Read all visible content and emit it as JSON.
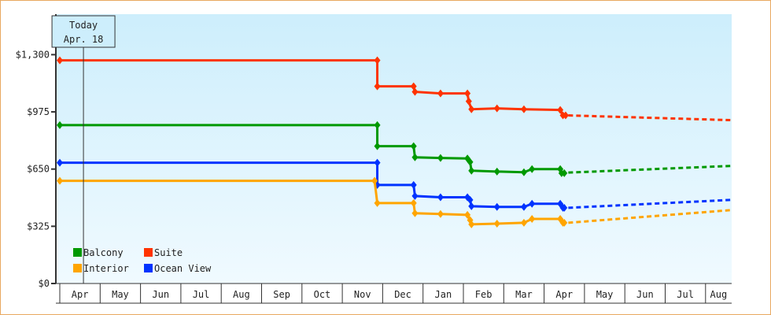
{
  "chart_data": {
    "type": "line",
    "step": true,
    "ylim": [
      0,
      1530
    ],
    "yticks": [
      {
        "v": 0,
        "label": "$0"
      },
      {
        "v": 325,
        "label": "$325"
      },
      {
        "v": 650,
        "label": "$650"
      },
      {
        "v": 975,
        "label": "$975"
      },
      {
        "v": 1300,
        "label": "$1,300"
      }
    ],
    "xticks": [
      "Apr",
      "May",
      "Jun",
      "Jul",
      "Aug",
      "Sep",
      "Oct",
      "Nov",
      "Dec",
      "Jan",
      "Feb",
      "Mar",
      "Apr",
      "May",
      "Jun",
      "Jul",
      "Aug"
    ],
    "today": {
      "title": "Today",
      "date": "Apr. 18",
      "x": "Apr 18"
    },
    "legend": {
      "placement": "bottom-left"
    },
    "series": [
      {
        "name": "Suite",
        "color": "#ff3300",
        "points": [
          [
            "Apr 1",
            1268
          ],
          [
            "Nov 27",
            1268
          ],
          [
            "Nov 27",
            1120
          ],
          [
            "Dec 24",
            1120
          ],
          [
            "Dec 25",
            1089
          ],
          [
            "Jan 14",
            1080
          ],
          [
            "Feb 4",
            1080
          ],
          [
            "Feb 5",
            1035
          ],
          [
            "Feb 7",
            990
          ],
          [
            "Feb 26",
            995
          ],
          [
            "Mar 16",
            990
          ],
          [
            "Apr 13",
            986
          ],
          [
            "Apr 15",
            955
          ],
          [
            "Apr 17",
            955
          ]
        ],
        "forecast": [
          [
            "Apr 19",
            955
          ],
          [
            "Aug 20",
            928
          ]
        ]
      },
      {
        "name": "Balcony",
        "color": "#009900",
        "points": [
          [
            "Apr 1",
            900
          ],
          [
            "Nov 27",
            900
          ],
          [
            "Nov 27",
            780
          ],
          [
            "Dec 24",
            780
          ],
          [
            "Dec 25",
            717
          ],
          [
            "Jan 14",
            713
          ],
          [
            "Feb 4",
            710
          ],
          [
            "Feb 6",
            690
          ],
          [
            "Feb 7",
            641
          ],
          [
            "Feb 26",
            636
          ],
          [
            "Mar 16",
            632
          ],
          [
            "Mar 22",
            650
          ],
          [
            "Apr 13",
            650
          ],
          [
            "Apr 14",
            627
          ],
          [
            "Apr 16",
            627
          ]
        ],
        "forecast": [
          [
            "Apr 19",
            630
          ],
          [
            "Aug 20",
            668
          ]
        ]
      },
      {
        "name": "Ocean View",
        "color": "#0033ff",
        "points": [
          [
            "Apr 1",
            686
          ],
          [
            "Nov 27",
            686
          ],
          [
            "Nov 27",
            560
          ],
          [
            "Dec 24",
            560
          ],
          [
            "Dec 25",
            497
          ],
          [
            "Jan 14",
            490
          ],
          [
            "Feb 4",
            490
          ],
          [
            "Feb 6",
            475
          ],
          [
            "Feb 7",
            439
          ],
          [
            "Feb 26",
            435
          ],
          [
            "Mar 16",
            435
          ],
          [
            "Mar 22",
            453
          ],
          [
            "Apr 13",
            453
          ],
          [
            "Apr 15",
            430
          ],
          [
            "Apr 16",
            430
          ]
        ],
        "forecast": [
          [
            "Apr 19",
            430
          ],
          [
            "Aug 20",
            475
          ]
        ]
      },
      {
        "name": "Interior",
        "color": "#ffa500",
        "points": [
          [
            "Apr 1",
            583
          ],
          [
            "Nov 25",
            583
          ],
          [
            "Nov 27",
            457
          ],
          [
            "Dec 24",
            457
          ],
          [
            "Dec 25",
            399
          ],
          [
            "Jan 14",
            395
          ],
          [
            "Feb 4",
            390
          ],
          [
            "Feb 6",
            360
          ],
          [
            "Feb 7",
            336
          ],
          [
            "Feb 26",
            340
          ],
          [
            "Mar 16",
            345
          ],
          [
            "Mar 22",
            367
          ],
          [
            "Apr 13",
            367
          ],
          [
            "Apr 15",
            345
          ],
          [
            "Apr 16",
            345
          ]
        ],
        "forecast": [
          [
            "Apr 19",
            345
          ],
          [
            "Aug 20",
            417
          ]
        ]
      }
    ]
  }
}
